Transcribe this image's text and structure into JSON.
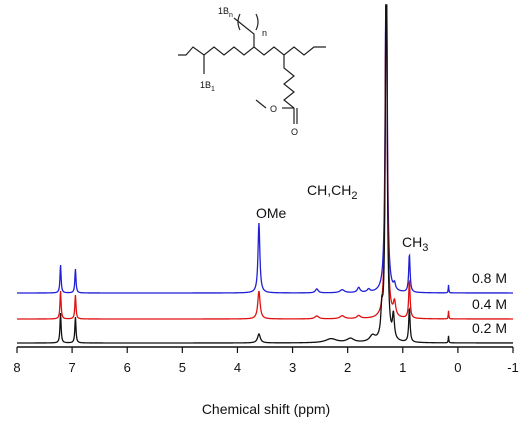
{
  "chart_data": {
    "type": "line",
    "xlabel": "Chemical shift (ppm)",
    "xlim": [
      8,
      -1
    ],
    "x_inverted": true,
    "x_ticks": [
      "8",
      "7",
      "6",
      "5",
      "4",
      "3",
      "2",
      "1",
      "0",
      "-1"
    ],
    "grid": false,
    "legend": "labels at right end of each stacked trace",
    "series": [
      {
        "name": "0.8 M",
        "color": "#1f1fd6",
        "peaks": [
          {
            "x": 7.21,
            "height": 28,
            "width": 0.012
          },
          {
            "x": 6.94,
            "height": 24,
            "width": 0.012
          },
          {
            "x": 3.61,
            "height": 70,
            "width": 0.02
          },
          {
            "x": 2.56,
            "height": 4,
            "width": 0.03
          },
          {
            "x": 2.1,
            "height": 3,
            "width": 0.05
          },
          {
            "x": 1.8,
            "height": 5,
            "width": 0.03
          },
          {
            "x": 1.62,
            "height": 3,
            "width": 0.03
          },
          {
            "x": 1.3,
            "height": 420,
            "width": 0.018
          },
          {
            "x": 1.15,
            "height": 6,
            "width": 0.02
          },
          {
            "x": 0.88,
            "height": 38,
            "width": 0.015
          },
          {
            "x": 0.17,
            "height": 8,
            "width": 0.006
          }
        ]
      },
      {
        "name": "0.4 M",
        "color": "#e01010",
        "peaks": [
          {
            "x": 7.21,
            "height": 28,
            "width": 0.012
          },
          {
            "x": 6.94,
            "height": 24,
            "width": 0.012
          },
          {
            "x": 3.61,
            "height": 28,
            "width": 0.025
          },
          {
            "x": 2.56,
            "height": 3,
            "width": 0.04
          },
          {
            "x": 2.1,
            "height": 3,
            "width": 0.05
          },
          {
            "x": 1.8,
            "height": 3,
            "width": 0.04
          },
          {
            "x": 1.3,
            "height": 420,
            "width": 0.018
          },
          {
            "x": 1.15,
            "height": 14,
            "width": 0.025
          },
          {
            "x": 0.88,
            "height": 38,
            "width": 0.015
          },
          {
            "x": 0.17,
            "height": 8,
            "width": 0.006
          }
        ]
      },
      {
        "name": "0.2 M",
        "color": "#111111",
        "peaks": [
          {
            "x": 7.21,
            "height": 30,
            "width": 0.012
          },
          {
            "x": 6.94,
            "height": 26,
            "width": 0.012
          },
          {
            "x": 3.61,
            "height": 9,
            "width": 0.03
          },
          {
            "x": 2.3,
            "height": 4,
            "width": 0.12
          },
          {
            "x": 1.95,
            "height": 4,
            "width": 0.08
          },
          {
            "x": 1.55,
            "height": 6,
            "width": 0.06
          },
          {
            "x": 1.38,
            "height": 26,
            "width": 0.02
          },
          {
            "x": 1.3,
            "height": 420,
            "width": 0.018
          },
          {
            "x": 1.17,
            "height": 24,
            "width": 0.02
          },
          {
            "x": 0.88,
            "height": 34,
            "width": 0.015
          },
          {
            "x": 0.17,
            "height": 7,
            "width": 0.006
          }
        ]
      }
    ],
    "annotations": [
      {
        "key": "ome",
        "text": "OMe",
        "x": 3.6
      },
      {
        "key": "chch2",
        "text": "CH,CH",
        "sub": "2",
        "x": 1.5
      },
      {
        "key": "ch3",
        "text": "CH",
        "sub": "3",
        "x": 0.65
      }
    ]
  },
  "structure": {
    "labels": {
      "b1": {
        "text": "1B",
        "sub": "1"
      },
      "bn": {
        "text": "1B",
        "sub": "n"
      },
      "n": "n",
      "o_carbonyl": "O",
      "o_ester": "O"
    }
  }
}
